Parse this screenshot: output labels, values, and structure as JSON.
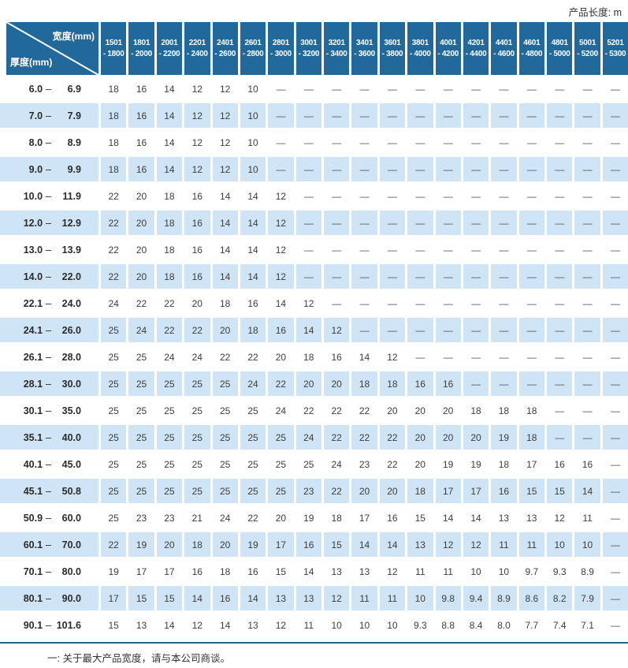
{
  "colors": {
    "header_bg": "#20699a",
    "row_alt_bg": "#cfe4f4",
    "rule": "#2a6586",
    "cell_text": "#3d3d3d",
    "header_text": "#ffffff"
  },
  "top_note": "产品长度: m",
  "footnote": "一: 关于最大产品宽度，请与本公司商谈。",
  "table": {
    "corner": {
      "width_label": "宽度(mm)",
      "thickness_label": "厚度(mm)"
    },
    "range_separator": "–",
    "dash": "—",
    "columns": [
      {
        "line1": "1501",
        "line2": "- 1800"
      },
      {
        "line1": "1801",
        "line2": "- 2000"
      },
      {
        "line1": "2001",
        "line2": "- 2200"
      },
      {
        "line1": "2201",
        "line2": "- 2400"
      },
      {
        "line1": "2401",
        "line2": "- 2600"
      },
      {
        "line1": "2601",
        "line2": "- 2800"
      },
      {
        "line1": "2801",
        "line2": "- 3000"
      },
      {
        "line1": "3001",
        "line2": "- 3200"
      },
      {
        "line1": "3201",
        "line2": "- 3400"
      },
      {
        "line1": "3401",
        "line2": "- 3600"
      },
      {
        "line1": "3601",
        "line2": "- 3800"
      },
      {
        "line1": "3801",
        "line2": "- 4000"
      },
      {
        "line1": "4001",
        "line2": "- 4200"
      },
      {
        "line1": "4201",
        "line2": "- 4400"
      },
      {
        "line1": "4401",
        "line2": "- 4600"
      },
      {
        "line1": "4601",
        "line2": "- 4800"
      },
      {
        "line1": "4801",
        "line2": "- 5000"
      },
      {
        "line1": "5001",
        "line2": "- 5200"
      },
      {
        "line1": "5201",
        "line2": "- 5300"
      }
    ],
    "rows": [
      {
        "lo": "6.0",
        "hi": "6.9",
        "values": [
          "18",
          "16",
          "14",
          "12",
          "12",
          "10",
          "—",
          "—",
          "—",
          "—",
          "—",
          "—",
          "—",
          "—",
          "—",
          "—",
          "—",
          "—",
          "—"
        ]
      },
      {
        "lo": "7.0",
        "hi": "7.9",
        "values": [
          "18",
          "16",
          "14",
          "12",
          "12",
          "10",
          "—",
          "—",
          "—",
          "—",
          "—",
          "—",
          "—",
          "—",
          "—",
          "—",
          "—",
          "—",
          "—"
        ]
      },
      {
        "lo": "8.0",
        "hi": "8.9",
        "values": [
          "18",
          "16",
          "14",
          "12",
          "12",
          "10",
          "—",
          "—",
          "—",
          "—",
          "—",
          "—",
          "—",
          "—",
          "—",
          "—",
          "—",
          "—",
          "—"
        ]
      },
      {
        "lo": "9.0",
        "hi": "9.9",
        "values": [
          "18",
          "16",
          "14",
          "12",
          "12",
          "10",
          "—",
          "—",
          "—",
          "—",
          "—",
          "—",
          "—",
          "—",
          "—",
          "—",
          "—",
          "—",
          "—"
        ]
      },
      {
        "lo": "10.0",
        "hi": "11.9",
        "values": [
          "22",
          "20",
          "18",
          "16",
          "14",
          "14",
          "12",
          "—",
          "—",
          "—",
          "—",
          "—",
          "—",
          "—",
          "—",
          "—",
          "—",
          "—",
          "—"
        ]
      },
      {
        "lo": "12.0",
        "hi": "12.9",
        "values": [
          "22",
          "20",
          "18",
          "16",
          "14",
          "14",
          "12",
          "—",
          "—",
          "—",
          "—",
          "—",
          "—",
          "—",
          "—",
          "—",
          "—",
          "—",
          "—"
        ]
      },
      {
        "lo": "13.0",
        "hi": "13.9",
        "values": [
          "22",
          "20",
          "18",
          "16",
          "14",
          "14",
          "12",
          "—",
          "—",
          "—",
          "—",
          "—",
          "—",
          "—",
          "—",
          "—",
          "—",
          "—",
          "—"
        ]
      },
      {
        "lo": "14.0",
        "hi": "22.0",
        "values": [
          "22",
          "20",
          "18",
          "16",
          "14",
          "14",
          "12",
          "—",
          "—",
          "—",
          "—",
          "—",
          "—",
          "—",
          "—",
          "—",
          "—",
          "—",
          "—"
        ]
      },
      {
        "lo": "22.1",
        "hi": "24.0",
        "values": [
          "24",
          "22",
          "22",
          "20",
          "18",
          "16",
          "14",
          "12",
          "—",
          "—",
          "—",
          "—",
          "—",
          "—",
          "—",
          "—",
          "—",
          "—",
          "—"
        ]
      },
      {
        "lo": "24.1",
        "hi": "26.0",
        "values": [
          "25",
          "24",
          "22",
          "22",
          "20",
          "18",
          "16",
          "14",
          "12",
          "—",
          "—",
          "—",
          "—",
          "—",
          "—",
          "—",
          "—",
          "—",
          "—"
        ]
      },
      {
        "lo": "26.1",
        "hi": "28.0",
        "values": [
          "25",
          "25",
          "24",
          "24",
          "22",
          "22",
          "20",
          "18",
          "16",
          "14",
          "12",
          "—",
          "—",
          "—",
          "—",
          "—",
          "—",
          "—",
          "—"
        ]
      },
      {
        "lo": "28.1",
        "hi": "30.0",
        "values": [
          "25",
          "25",
          "25",
          "25",
          "25",
          "24",
          "22",
          "20",
          "20",
          "18",
          "18",
          "16",
          "16",
          "—",
          "—",
          "—",
          "—",
          "—",
          "—"
        ]
      },
      {
        "lo": "30.1",
        "hi": "35.0",
        "values": [
          "25",
          "25",
          "25",
          "25",
          "25",
          "25",
          "24",
          "22",
          "22",
          "22",
          "20",
          "20",
          "20",
          "18",
          "18",
          "18",
          "—",
          "—",
          "—"
        ]
      },
      {
        "lo": "35.1",
        "hi": "40.0",
        "values": [
          "25",
          "25",
          "25",
          "25",
          "25",
          "25",
          "25",
          "24",
          "22",
          "22",
          "22",
          "20",
          "20",
          "20",
          "19",
          "18",
          "—",
          "—",
          "—"
        ]
      },
      {
        "lo": "40.1",
        "hi": "45.0",
        "values": [
          "25",
          "25",
          "25",
          "25",
          "25",
          "25",
          "25",
          "25",
          "24",
          "23",
          "22",
          "20",
          "19",
          "19",
          "18",
          "17",
          "16",
          "16",
          "—"
        ]
      },
      {
        "lo": "45.1",
        "hi": "50.8",
        "values": [
          "25",
          "25",
          "25",
          "25",
          "25",
          "25",
          "25",
          "23",
          "22",
          "20",
          "20",
          "18",
          "17",
          "17",
          "16",
          "15",
          "15",
          "14",
          "—"
        ]
      },
      {
        "lo": "50.9",
        "hi": "60.0",
        "values": [
          "25",
          "23",
          "23",
          "21",
          "24",
          "22",
          "20",
          "19",
          "18",
          "17",
          "16",
          "15",
          "14",
          "14",
          "13",
          "13",
          "12",
          "11",
          "—"
        ]
      },
      {
        "lo": "60.1",
        "hi": "70.0",
        "values": [
          "22",
          "19",
          "20",
          "18",
          "20",
          "19",
          "17",
          "16",
          "15",
          "14",
          "14",
          "13",
          "12",
          "12",
          "11",
          "11",
          "10",
          "10",
          "—"
        ]
      },
      {
        "lo": "70.1",
        "hi": "80.0",
        "values": [
          "19",
          "17",
          "17",
          "16",
          "18",
          "16",
          "15",
          "14",
          "13",
          "13",
          "12",
          "11",
          "11",
          "10",
          "10",
          "9.7",
          "9.3",
          "8.9",
          "—"
        ]
      },
      {
        "lo": "80.1",
        "hi": "90.0",
        "values": [
          "17",
          "15",
          "15",
          "14",
          "16",
          "14",
          "13",
          "13",
          "12",
          "11",
          "11",
          "10",
          "9.8",
          "9.4",
          "8.9",
          "8.6",
          "8.2",
          "7.9",
          "—"
        ]
      },
      {
        "lo": "90.1",
        "hi": "101.6",
        "values": [
          "15",
          "13",
          "14",
          "12",
          "14",
          "13",
          "12",
          "11",
          "10",
          "10",
          "10",
          "9.3",
          "8.8",
          "8.4",
          "8.0",
          "7.7",
          "7.4",
          "7.1",
          "—"
        ]
      }
    ]
  }
}
